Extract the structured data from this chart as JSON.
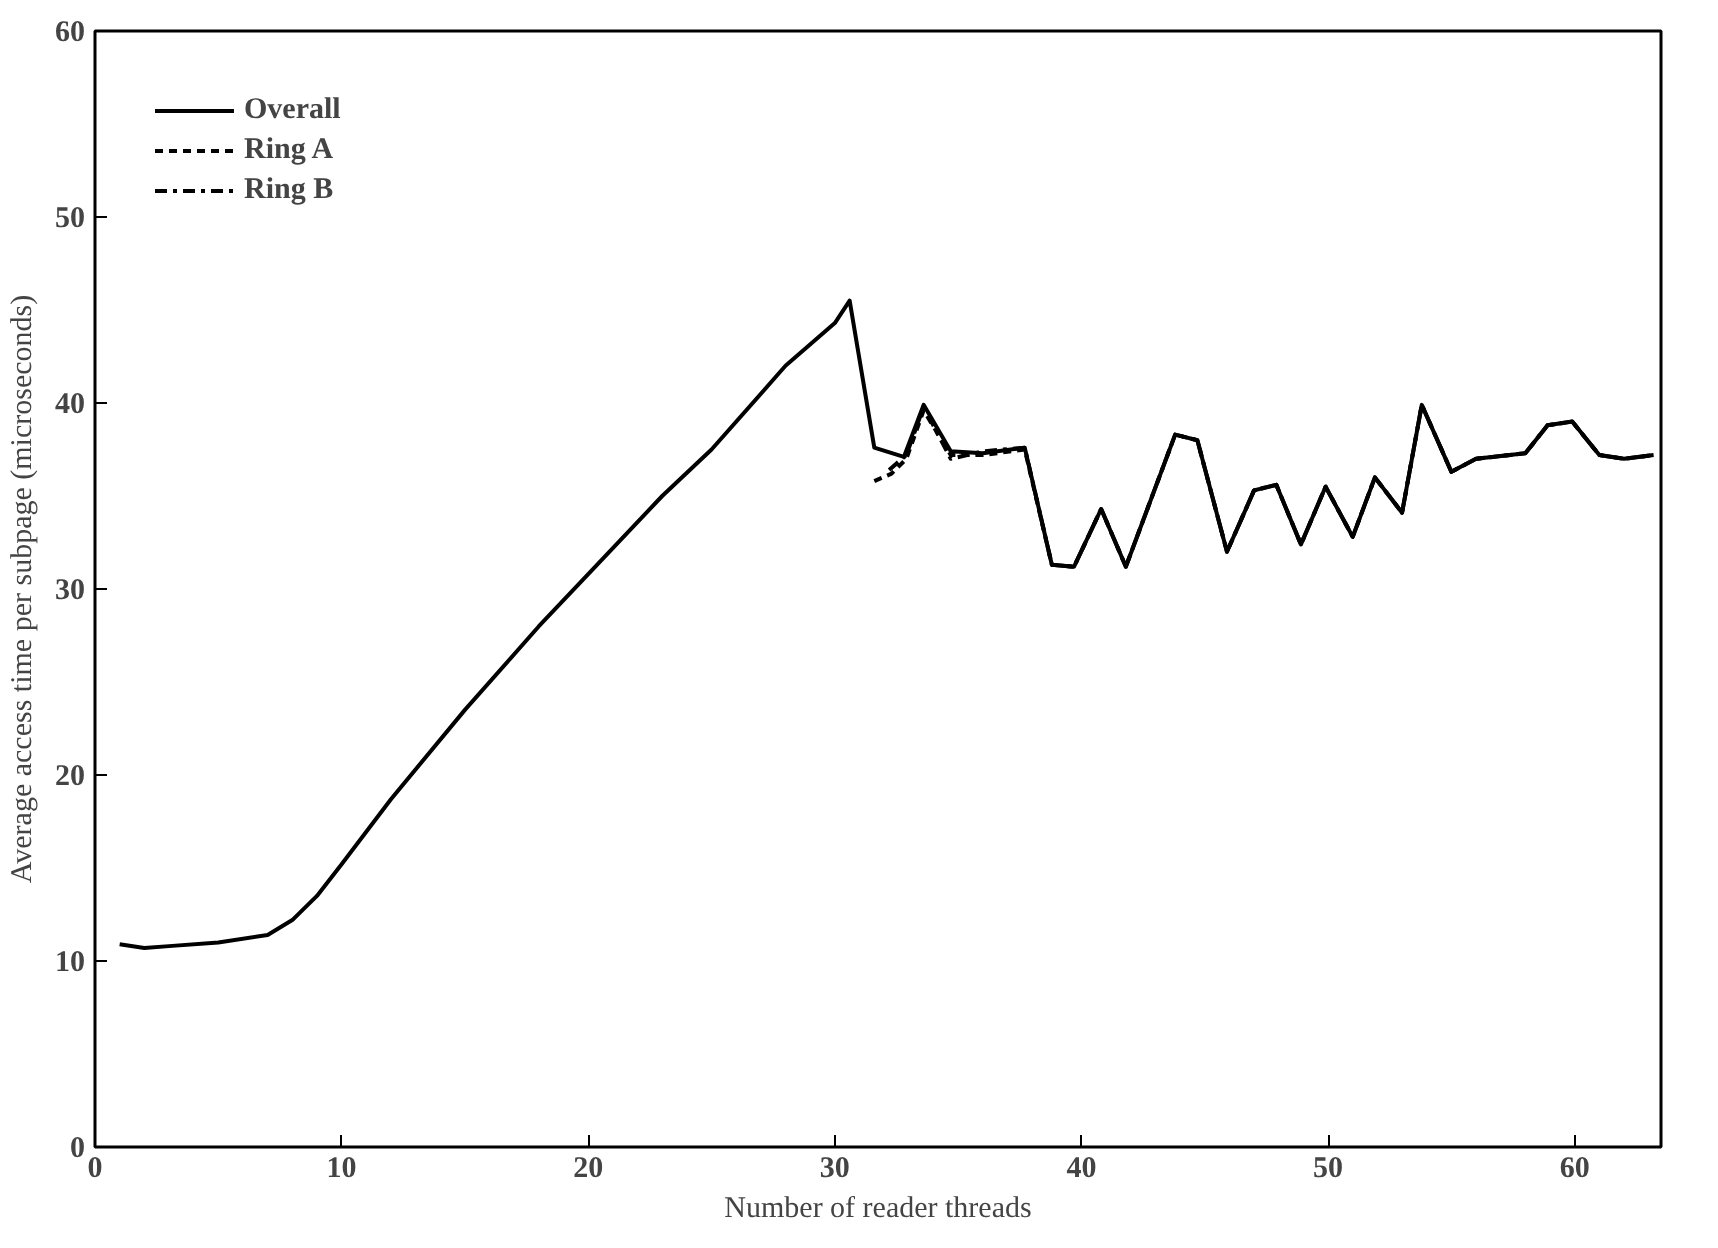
{
  "chart_data": {
    "type": "line",
    "xlabel": "Number of reader threads",
    "ylabel": "Average access time per subpage (microseconds)",
    "xlim": [
      0,
      63.5
    ],
    "ylim": [
      0,
      60
    ],
    "xticks": [
      0,
      10,
      20,
      30,
      40,
      50,
      60
    ],
    "yticks": [
      0,
      10,
      20,
      30,
      40,
      50,
      60
    ],
    "grid": false,
    "legend": "top left",
    "marker": "none",
    "series": [
      {
        "name": "Overall",
        "color": "#000000",
        "line_style": "solid",
        "x": [
          1,
          2,
          3,
          5,
          7,
          8,
          9,
          10,
          12,
          15,
          18,
          20,
          23,
          25,
          28,
          30,
          30.6,
          31.6,
          32.8,
          33.6,
          34.7,
          36,
          37.7,
          38.8,
          39.7,
          40.8,
          41.8,
          43.8,
          44.7,
          45.9,
          47.0,
          47.9,
          48.9,
          49.9,
          51.0,
          51.9,
          53.0,
          53.8,
          55.0,
          56,
          58.0,
          58.9,
          59.9,
          61.0,
          62,
          63.2
        ],
        "values": [
          10.9,
          10.7,
          10.8,
          11.0,
          11.4,
          12.2,
          13.5,
          15.2,
          18.7,
          23.5,
          28,
          30.8,
          35,
          37.5,
          42,
          44.3,
          45.5,
          37.6,
          37.1,
          39.9,
          37.4,
          37.3,
          37.6,
          31.3,
          31.2,
          34.3,
          31.2,
          38.3,
          38.0,
          32.0,
          35.3,
          35.6,
          32.4,
          35.5,
          32.8,
          36.0,
          34.1,
          39.9,
          36.3,
          37.0,
          37.3,
          38.8,
          39.0,
          37.2,
          37.0,
          37.2
        ]
      },
      {
        "name": "Ring A",
        "color": "#000000",
        "line_style": "dashed",
        "x": [
          31.6,
          32.3,
          32.9,
          33.6,
          34.7,
          36,
          37.7,
          38.8,
          39.7,
          40.8,
          41.8,
          43.8,
          44.7,
          45.9,
          47.0,
          47.9,
          48.9,
          49.9,
          51.0,
          51.9,
          53.0,
          53.8,
          55.0,
          56,
          58.0,
          58.9,
          59.9,
          61.0,
          62,
          63.2
        ],
        "values": [
          35.8,
          36.2,
          37.0,
          39.6,
          37.2,
          37.2,
          37.5,
          31.3,
          31.2,
          34.3,
          31.2,
          38.3,
          38.0,
          32.0,
          35.3,
          35.6,
          32.4,
          35.5,
          32.8,
          36.0,
          34.1,
          39.9,
          36.3,
          37.0,
          37.3,
          38.8,
          39.0,
          37.2,
          37.0,
          37.2
        ]
      },
      {
        "name": "Ring B",
        "color": "#000000",
        "line_style": "dashdot",
        "x": [
          32.2,
          32.9,
          33.6,
          34.7,
          36,
          37.7,
          38.8,
          39.7,
          40.8,
          41.8,
          43.8,
          44.7,
          45.9,
          47.0,
          47.9,
          48.9,
          49.9,
          51.0,
          51.9,
          53.0,
          53.8,
          55.0,
          56,
          58.0,
          58.9,
          59.9,
          61.0,
          62,
          63.2
        ],
        "values": [
          36.4,
          37.2,
          39.8,
          37.0,
          37.4,
          37.6,
          31.3,
          31.2,
          34.3,
          31.2,
          38.3,
          38.0,
          32.0,
          35.3,
          35.6,
          32.4,
          35.5,
          32.8,
          36.0,
          34.1,
          39.9,
          36.3,
          37.0,
          37.3,
          38.8,
          39.0,
          37.2,
          37.0,
          37.2
        ]
      }
    ]
  }
}
